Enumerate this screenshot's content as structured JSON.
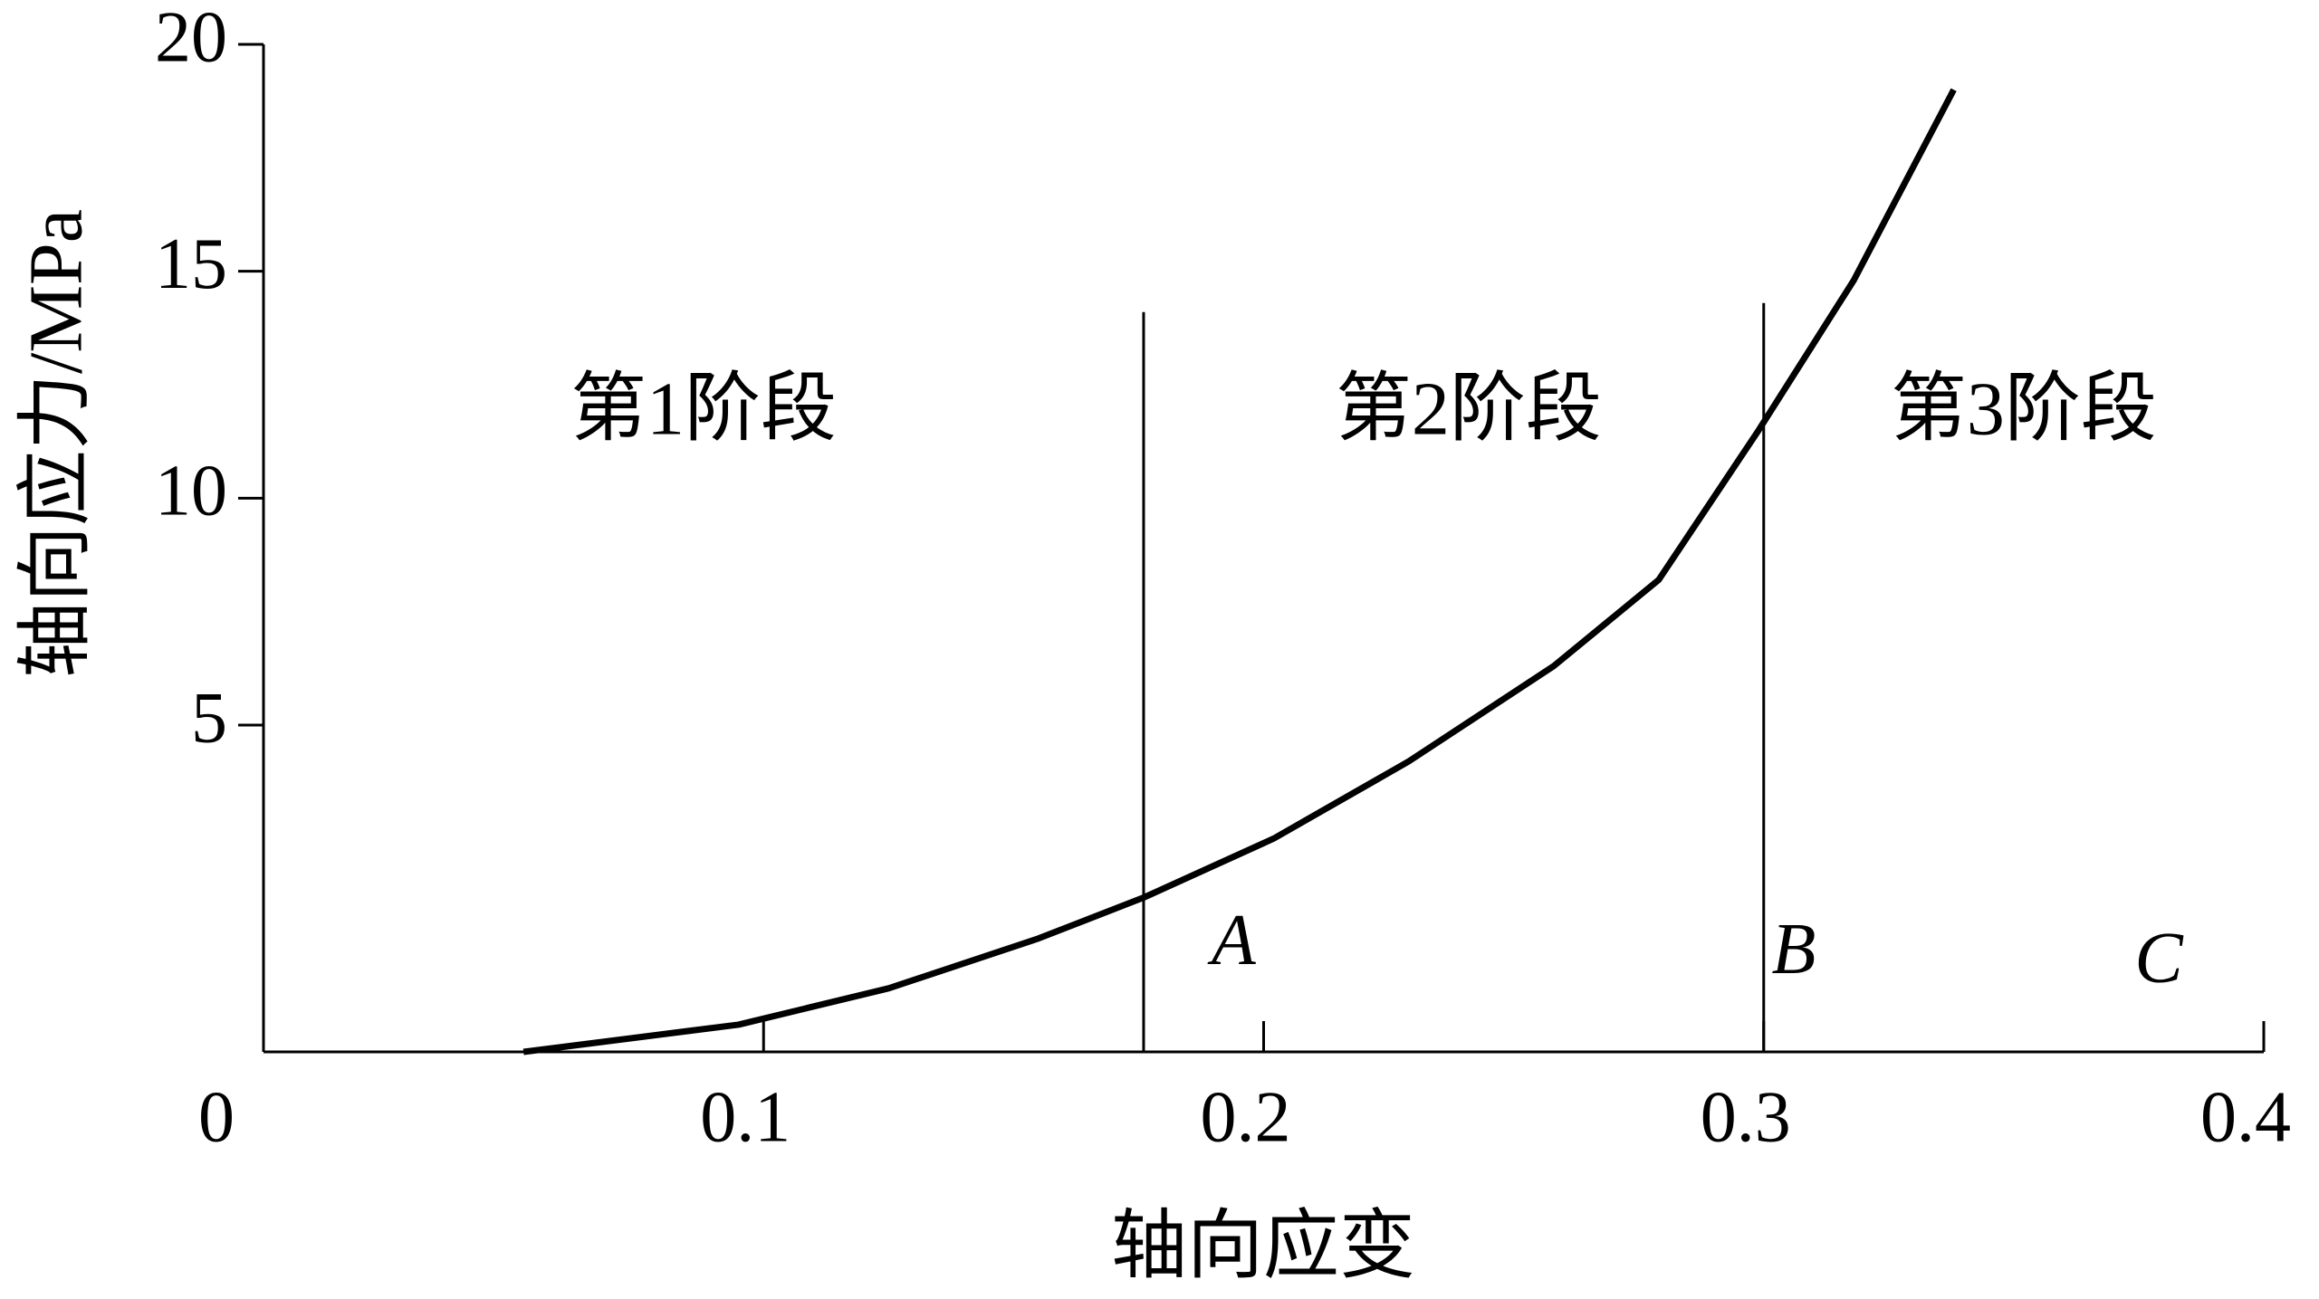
{
  "chart_data": {
    "type": "line",
    "x_label": "轴向应变",
    "y_label": "轴向应力/MPa",
    "x": [
      0.052,
      0.095,
      0.125,
      0.155,
      0.176,
      0.202,
      0.229,
      0.258,
      0.279,
      0.299,
      0.318,
      0.338
    ],
    "series": [
      {
        "color": "#000000",
        "values": [
          -2.2,
          -1.6,
          -0.8,
          0.3,
          1.2,
          2.5,
          4.2,
          6.3,
          8.2,
          11.5,
          14.8,
          19.0
        ]
      }
    ],
    "xlim": [
      0,
      0.4
    ],
    "ylim": [
      -2.2,
      20
    ],
    "xticks": [
      0,
      0.1,
      0.2,
      0.3,
      0.4
    ],
    "yticks": [
      5,
      10,
      15,
      20
    ],
    "vlines": [
      {
        "x": 0.176,
        "top": 14.1
      },
      {
        "x": 0.3,
        "top": 14.3
      }
    ],
    "annotations": [
      {
        "text": "第1阶段",
        "x": 0.088,
        "y": 11.8,
        "style": "stage"
      },
      {
        "text": "第2阶段",
        "x": 0.241,
        "y": 11.8,
        "style": "stage"
      },
      {
        "text": "第3阶段",
        "x": 0.352,
        "y": 11.8,
        "style": "stage"
      },
      {
        "text": "A",
        "x": 0.194,
        "y": 0.1,
        "style": "letter"
      },
      {
        "text": "B",
        "x": 0.306,
        "y": -0.1,
        "style": "letter"
      },
      {
        "text": "C",
        "x": 0.379,
        "y": -0.3,
        "style": "letter"
      }
    ]
  }
}
